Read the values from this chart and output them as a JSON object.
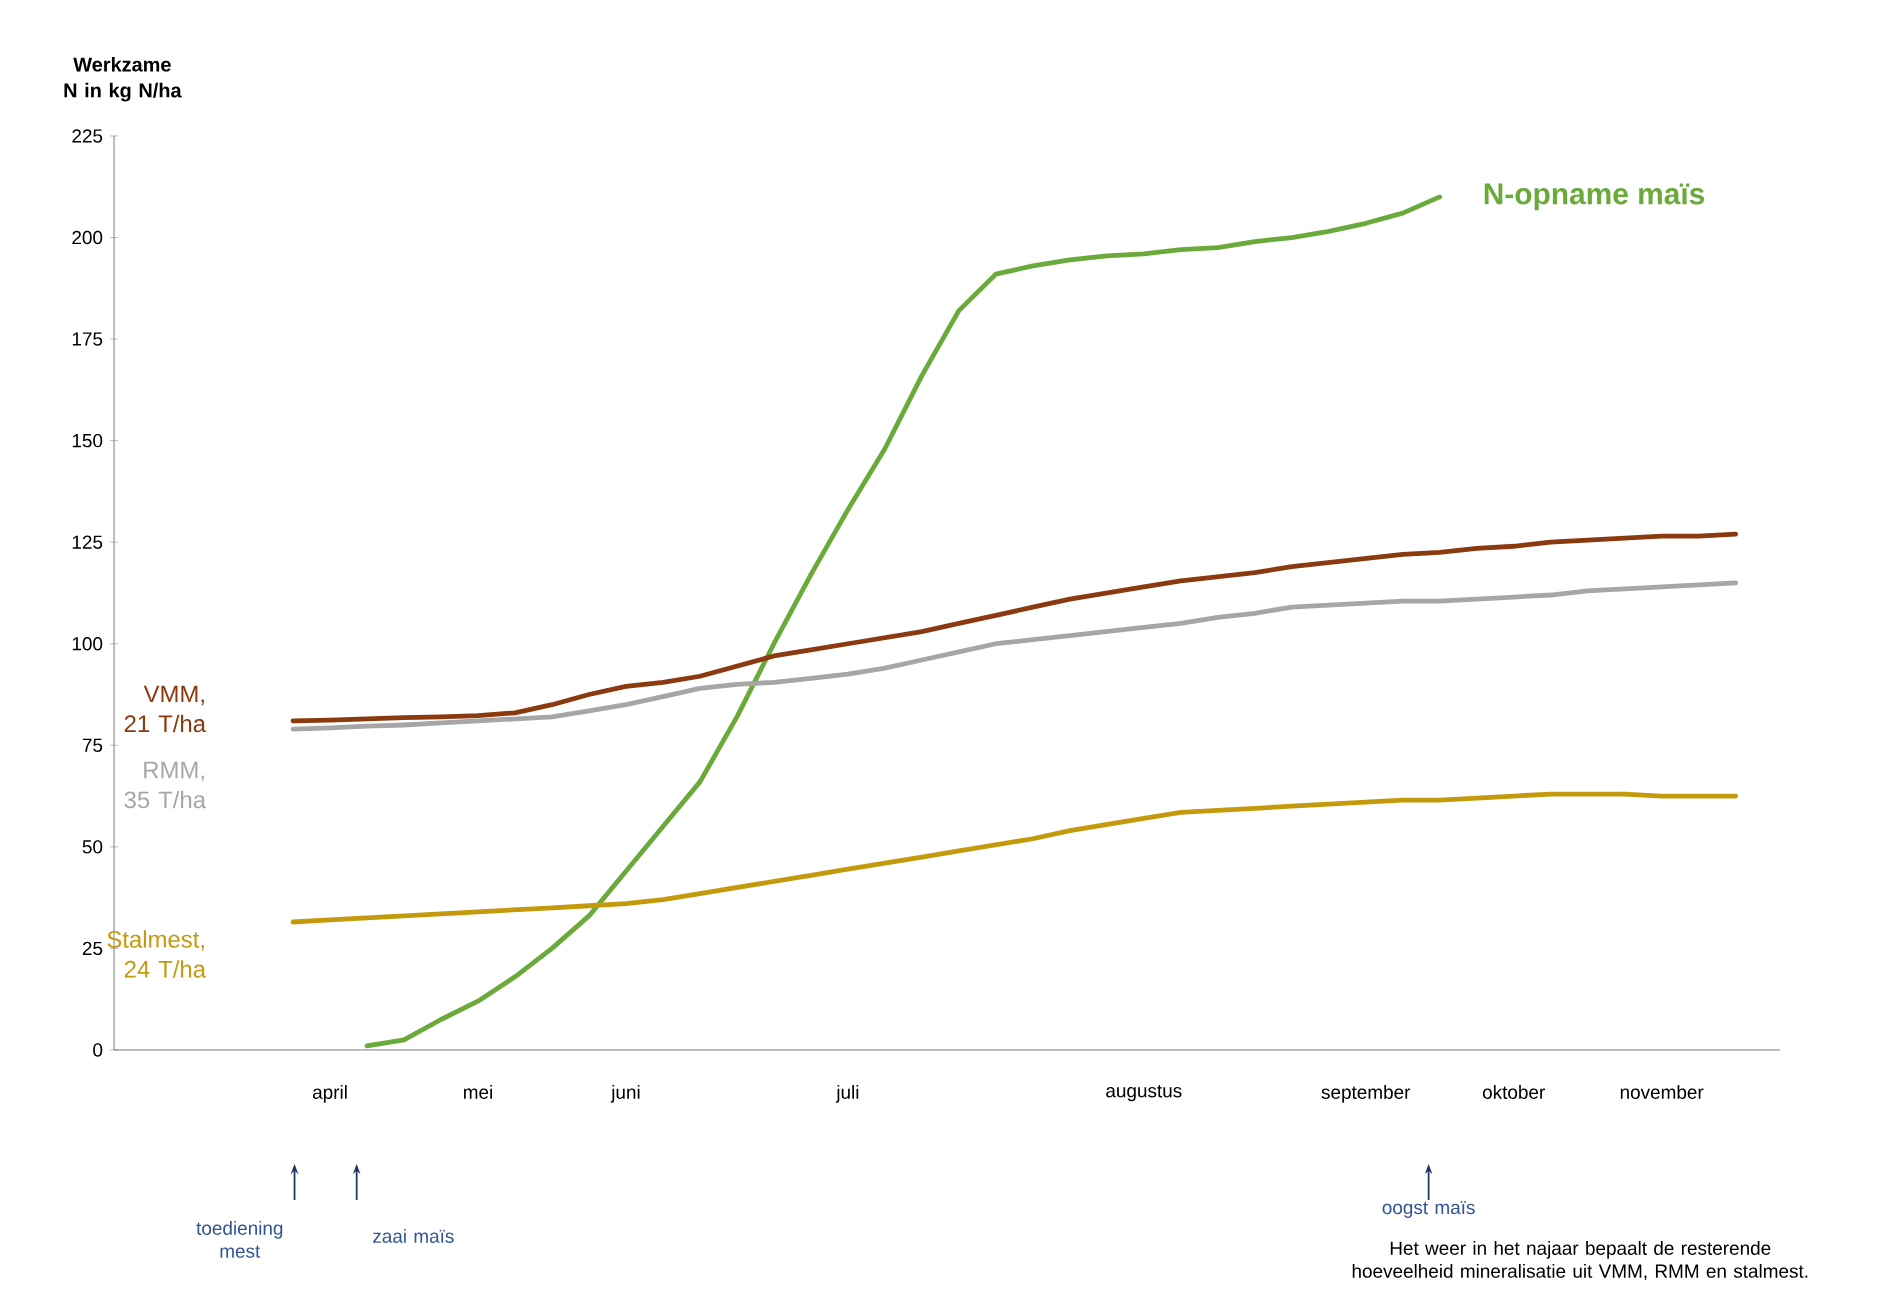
{
  "chart_data": {
    "type": "line",
    "ylabel": "Werkzame N in kg N/ha",
    "categories": [
      null,
      null,
      "april",
      null,
      null,
      null,
      "mei",
      null,
      null,
      null,
      "juni",
      null,
      null,
      null,
      null,
      null,
      "juli",
      null,
      null,
      null,
      null,
      null,
      null,
      null,
      "augustus",
      null,
      null,
      null,
      null,
      null,
      "september",
      null,
      null,
      null,
      "oktober",
      null,
      null,
      null,
      "november",
      null,
      null
    ],
    "ylim": [
      0,
      225
    ],
    "yticks": [
      0,
      25,
      50,
      75,
      100,
      125,
      150,
      175,
      200,
      225
    ],
    "series": [
      {
        "name": "N-opname maïs",
        "color": "#6aaa3a",
        "values": [
          null,
          null,
          null,
          1,
          2.5,
          7.5,
          12,
          18,
          25,
          33,
          44,
          55,
          66,
          82,
          100,
          117,
          133,
          148,
          166,
          182,
          191,
          193,
          194.5,
          195.5,
          196,
          197,
          197.5,
          199,
          200,
          201.5,
          203.5,
          206,
          210,
          null,
          null,
          null,
          null,
          null,
          null,
          null,
          null
        ]
      },
      {
        "name": "VMM, 21 T/ha",
        "color": "#8b3a0f",
        "values": [
          null,
          81,
          81.2,
          81.5,
          81.8,
          82,
          82.3,
          83,
          85,
          87.5,
          89.5,
          90.5,
          92,
          94.5,
          97,
          98.5,
          100,
          101.5,
          103,
          105,
          107,
          109,
          111,
          112.5,
          114,
          115.5,
          116.5,
          117.5,
          119,
          120,
          121,
          122,
          122.5,
          123.5,
          124,
          125,
          125.5,
          126,
          126.5,
          126.5,
          127
        ]
      },
      {
        "name": "RMM, 35 T/ha",
        "color": "#a6a6a6",
        "values": [
          null,
          79,
          79.3,
          79.7,
          80,
          80.5,
          81,
          81.5,
          82,
          83.5,
          85,
          87,
          89,
          90,
          90.5,
          91.5,
          92.5,
          94,
          96,
          98,
          100,
          101,
          102,
          103,
          104,
          105,
          106.5,
          107.5,
          109,
          109.5,
          110,
          110.5,
          110.5,
          111,
          111.5,
          112,
          113,
          113.5,
          114,
          114.5,
          115
        ]
      },
      {
        "name": "Stalmest, 24 T/ha",
        "color": "#c49a0c",
        "values": [
          null,
          31.5,
          32,
          32.5,
          33,
          33.5,
          34,
          34.5,
          35,
          35.5,
          36,
          37,
          38.5,
          40,
          41.5,
          43,
          44.5,
          46,
          47.5,
          49,
          50.5,
          52,
          54,
          55.5,
          57,
          58.5,
          59,
          59.5,
          60,
          60.5,
          61,
          61.5,
          61.5,
          62,
          62.5,
          63,
          63,
          63,
          62.5,
          62.5,
          62.5
        ]
      }
    ],
    "annotations": [
      "toediening mest",
      "zaai maïs",
      "oogst maïs",
      "Het weer in het najaar bepaalt de resterende hoeveelheid mineralisatie uit VMM, RMM en stalmest."
    ],
    "marker": "none",
    "line_style": "solid"
  }
}
